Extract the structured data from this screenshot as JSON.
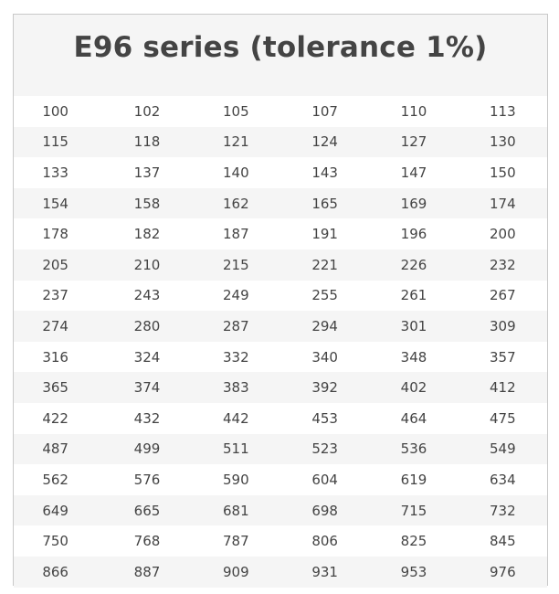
{
  "title": "E96 series (tolerance 1%)",
  "rows": [
    [
      "100",
      "102",
      "105",
      "107",
      "110",
      "113"
    ],
    [
      "115",
      "118",
      "121",
      "124",
      "127",
      "130"
    ],
    [
      "133",
      "137",
      "140",
      "143",
      "147",
      "150"
    ],
    [
      "154",
      "158",
      "162",
      "165",
      "169",
      "174"
    ],
    [
      "178",
      "182",
      "187",
      "191",
      "196",
      "200"
    ],
    [
      "205",
      "210",
      "215",
      "221",
      "226",
      "232"
    ],
    [
      "237",
      "243",
      "249",
      "255",
      "261",
      "267"
    ],
    [
      "274",
      "280",
      "287",
      "294",
      "301",
      "309"
    ],
    [
      "316",
      "324",
      "332",
      "340",
      "348",
      "357"
    ],
    [
      "365",
      "374",
      "383",
      "392",
      "402",
      "412"
    ],
    [
      "422",
      "432",
      "442",
      "453",
      "464",
      "475"
    ],
    [
      "487",
      "499",
      "511",
      "523",
      "536",
      "549"
    ],
    [
      "562",
      "576",
      "590",
      "604",
      "619",
      "634"
    ],
    [
      "649",
      "665",
      "681",
      "698",
      "715",
      "732"
    ],
    [
      "750",
      "768",
      "787",
      "806",
      "825",
      "845"
    ],
    [
      "866",
      "887",
      "909",
      "931",
      "953",
      "976"
    ]
  ]
}
